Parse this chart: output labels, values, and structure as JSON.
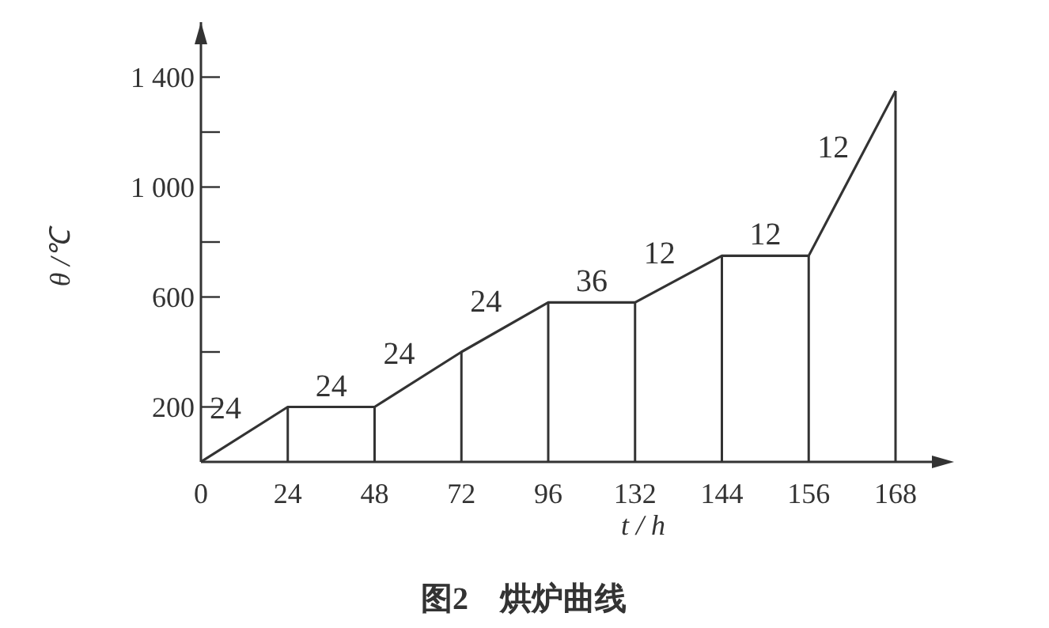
{
  "chart_data": {
    "type": "line",
    "title": "图2　烘炉曲线",
    "xlabel": "t / h",
    "ylabel": "θ /℃",
    "categories": [
      "0",
      "24",
      "48",
      "72",
      "96",
      "132",
      "144",
      "156",
      "168"
    ],
    "values": [
      0,
      200,
      200,
      400,
      580,
      580,
      750,
      750,
      1350
    ],
    "color": "#333333",
    "marker": "none",
    "line_style": "solid",
    "ylim": [
      0,
      1600
    ],
    "yticks": [
      200,
      {
        "value": 400,
        "label": null
      },
      600,
      {
        "value": 800,
        "label": null
      },
      {
        "value": 1000,
        "label": "1 000"
      },
      {
        "value": 1200,
        "label": null
      },
      {
        "value": 1400,
        "label": "1 400"
      }
    ],
    "annotations": [
      "24",
      "24",
      "24",
      "24",
      "36",
      "12",
      "12",
      "12"
    ]
  }
}
